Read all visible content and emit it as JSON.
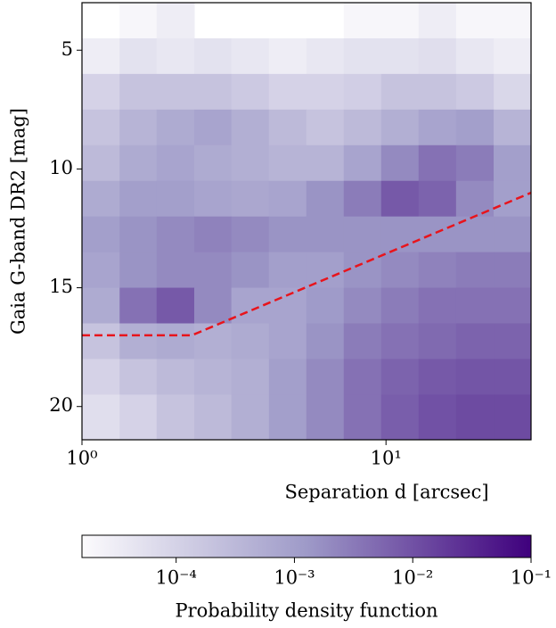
{
  "chart_data": {
    "type": "heatmap",
    "xlabel": "Separation d [arcsec]",
    "ylabel": "Gaia G-band DR2 [mag]",
    "xscale": "log",
    "xlim": [
      1,
      30
    ],
    "ylim": [
      21.4,
      3
    ],
    "xticks": [
      {
        "value": 1,
        "label": "10⁰"
      },
      {
        "value": 10,
        "label": "10¹"
      }
    ],
    "yticks": [
      5,
      10,
      15,
      20
    ],
    "x_bins": [
      1,
      1.33,
      1.76,
      2.34,
      3.1,
      4.12,
      5.47,
      7.26,
      9.64,
      12.8,
      17,
      22.6,
      30
    ],
    "y_bins": [
      3,
      4.5,
      6,
      7.5,
      9,
      10.5,
      12,
      13.5,
      15,
      16.5,
      18,
      19.5,
      21.4
    ],
    "z": [
      [
        null,
        2e-05,
        3e-05,
        null,
        null,
        null,
        null,
        2e-05,
        2e-05,
        3e-05,
        2e-05,
        2e-05
      ],
      [
        3e-05,
        5e-05,
        4e-05,
        5e-05,
        4e-05,
        3e-05,
        4e-05,
        5e-05,
        5e-05,
        6e-05,
        4e-05,
        3e-05
      ],
      [
        0.0001,
        0.0002,
        0.0002,
        0.0002,
        0.00015,
        0.0001,
        0.0001,
        0.00012,
        0.0002,
        0.0002,
        0.00015,
        8e-05
      ],
      [
        0.0002,
        0.0004,
        0.0006,
        0.0008,
        0.0005,
        0.0003,
        0.0002,
        0.0003,
        0.0005,
        0.0008,
        0.001,
        0.0004
      ],
      [
        0.0003,
        0.0006,
        0.0008,
        0.0006,
        0.0005,
        0.0004,
        0.0004,
        0.0008,
        0.002,
        0.004,
        0.003,
        0.001
      ],
      [
        0.0006,
        0.001,
        0.001,
        0.0008,
        0.0007,
        0.0008,
        0.0015,
        0.003,
        0.008,
        0.006,
        0.002,
        0.001
      ],
      [
        0.001,
        0.0015,
        0.002,
        0.0025,
        0.002,
        0.0015,
        0.0015,
        0.0015,
        0.0015,
        0.0015,
        0.0015,
        0.0015
      ],
      [
        0.0008,
        0.0015,
        0.002,
        0.002,
        0.0015,
        0.001,
        0.001,
        0.0015,
        0.002,
        0.0025,
        0.003,
        0.003
      ],
      [
        0.0006,
        0.004,
        0.008,
        0.002,
        0.0008,
        0.0008,
        0.0012,
        0.002,
        0.003,
        0.004,
        0.004,
        0.004
      ],
      [
        0.0002,
        0.0005,
        0.0006,
        0.0005,
        0.0006,
        0.0008,
        0.0015,
        0.003,
        0.004,
        0.005,
        0.006,
        0.006
      ],
      [
        0.0001,
        0.0002,
        0.0003,
        0.0004,
        0.0005,
        0.001,
        0.002,
        0.004,
        0.006,
        0.008,
        0.009,
        0.009
      ],
      [
        6e-05,
        0.0001,
        0.0002,
        0.0003,
        0.0005,
        0.001,
        0.002,
        0.004,
        0.007,
        0.01,
        0.012,
        0.012
      ]
    ],
    "colormap": [
      "#fcfbfd",
      "#9e9ac8",
      "#3f007d"
    ],
    "colorbar": {
      "label": "Probability density function",
      "scale": "log",
      "lim": [
        1.6e-05,
        0.1
      ],
      "ticks": [
        {
          "value": 0.0001,
          "label": "10⁻⁴"
        },
        {
          "value": 0.001,
          "label": "10⁻³"
        },
        {
          "value": 0.01,
          "label": "10⁻²"
        },
        {
          "value": 0.1,
          "label": "10⁻¹"
        }
      ]
    },
    "series": [
      {
        "color": "#e8141c",
        "dashed": true,
        "x": [
          1,
          2.3,
          30
        ],
        "values": [
          17,
          17,
          11
        ]
      }
    ]
  }
}
